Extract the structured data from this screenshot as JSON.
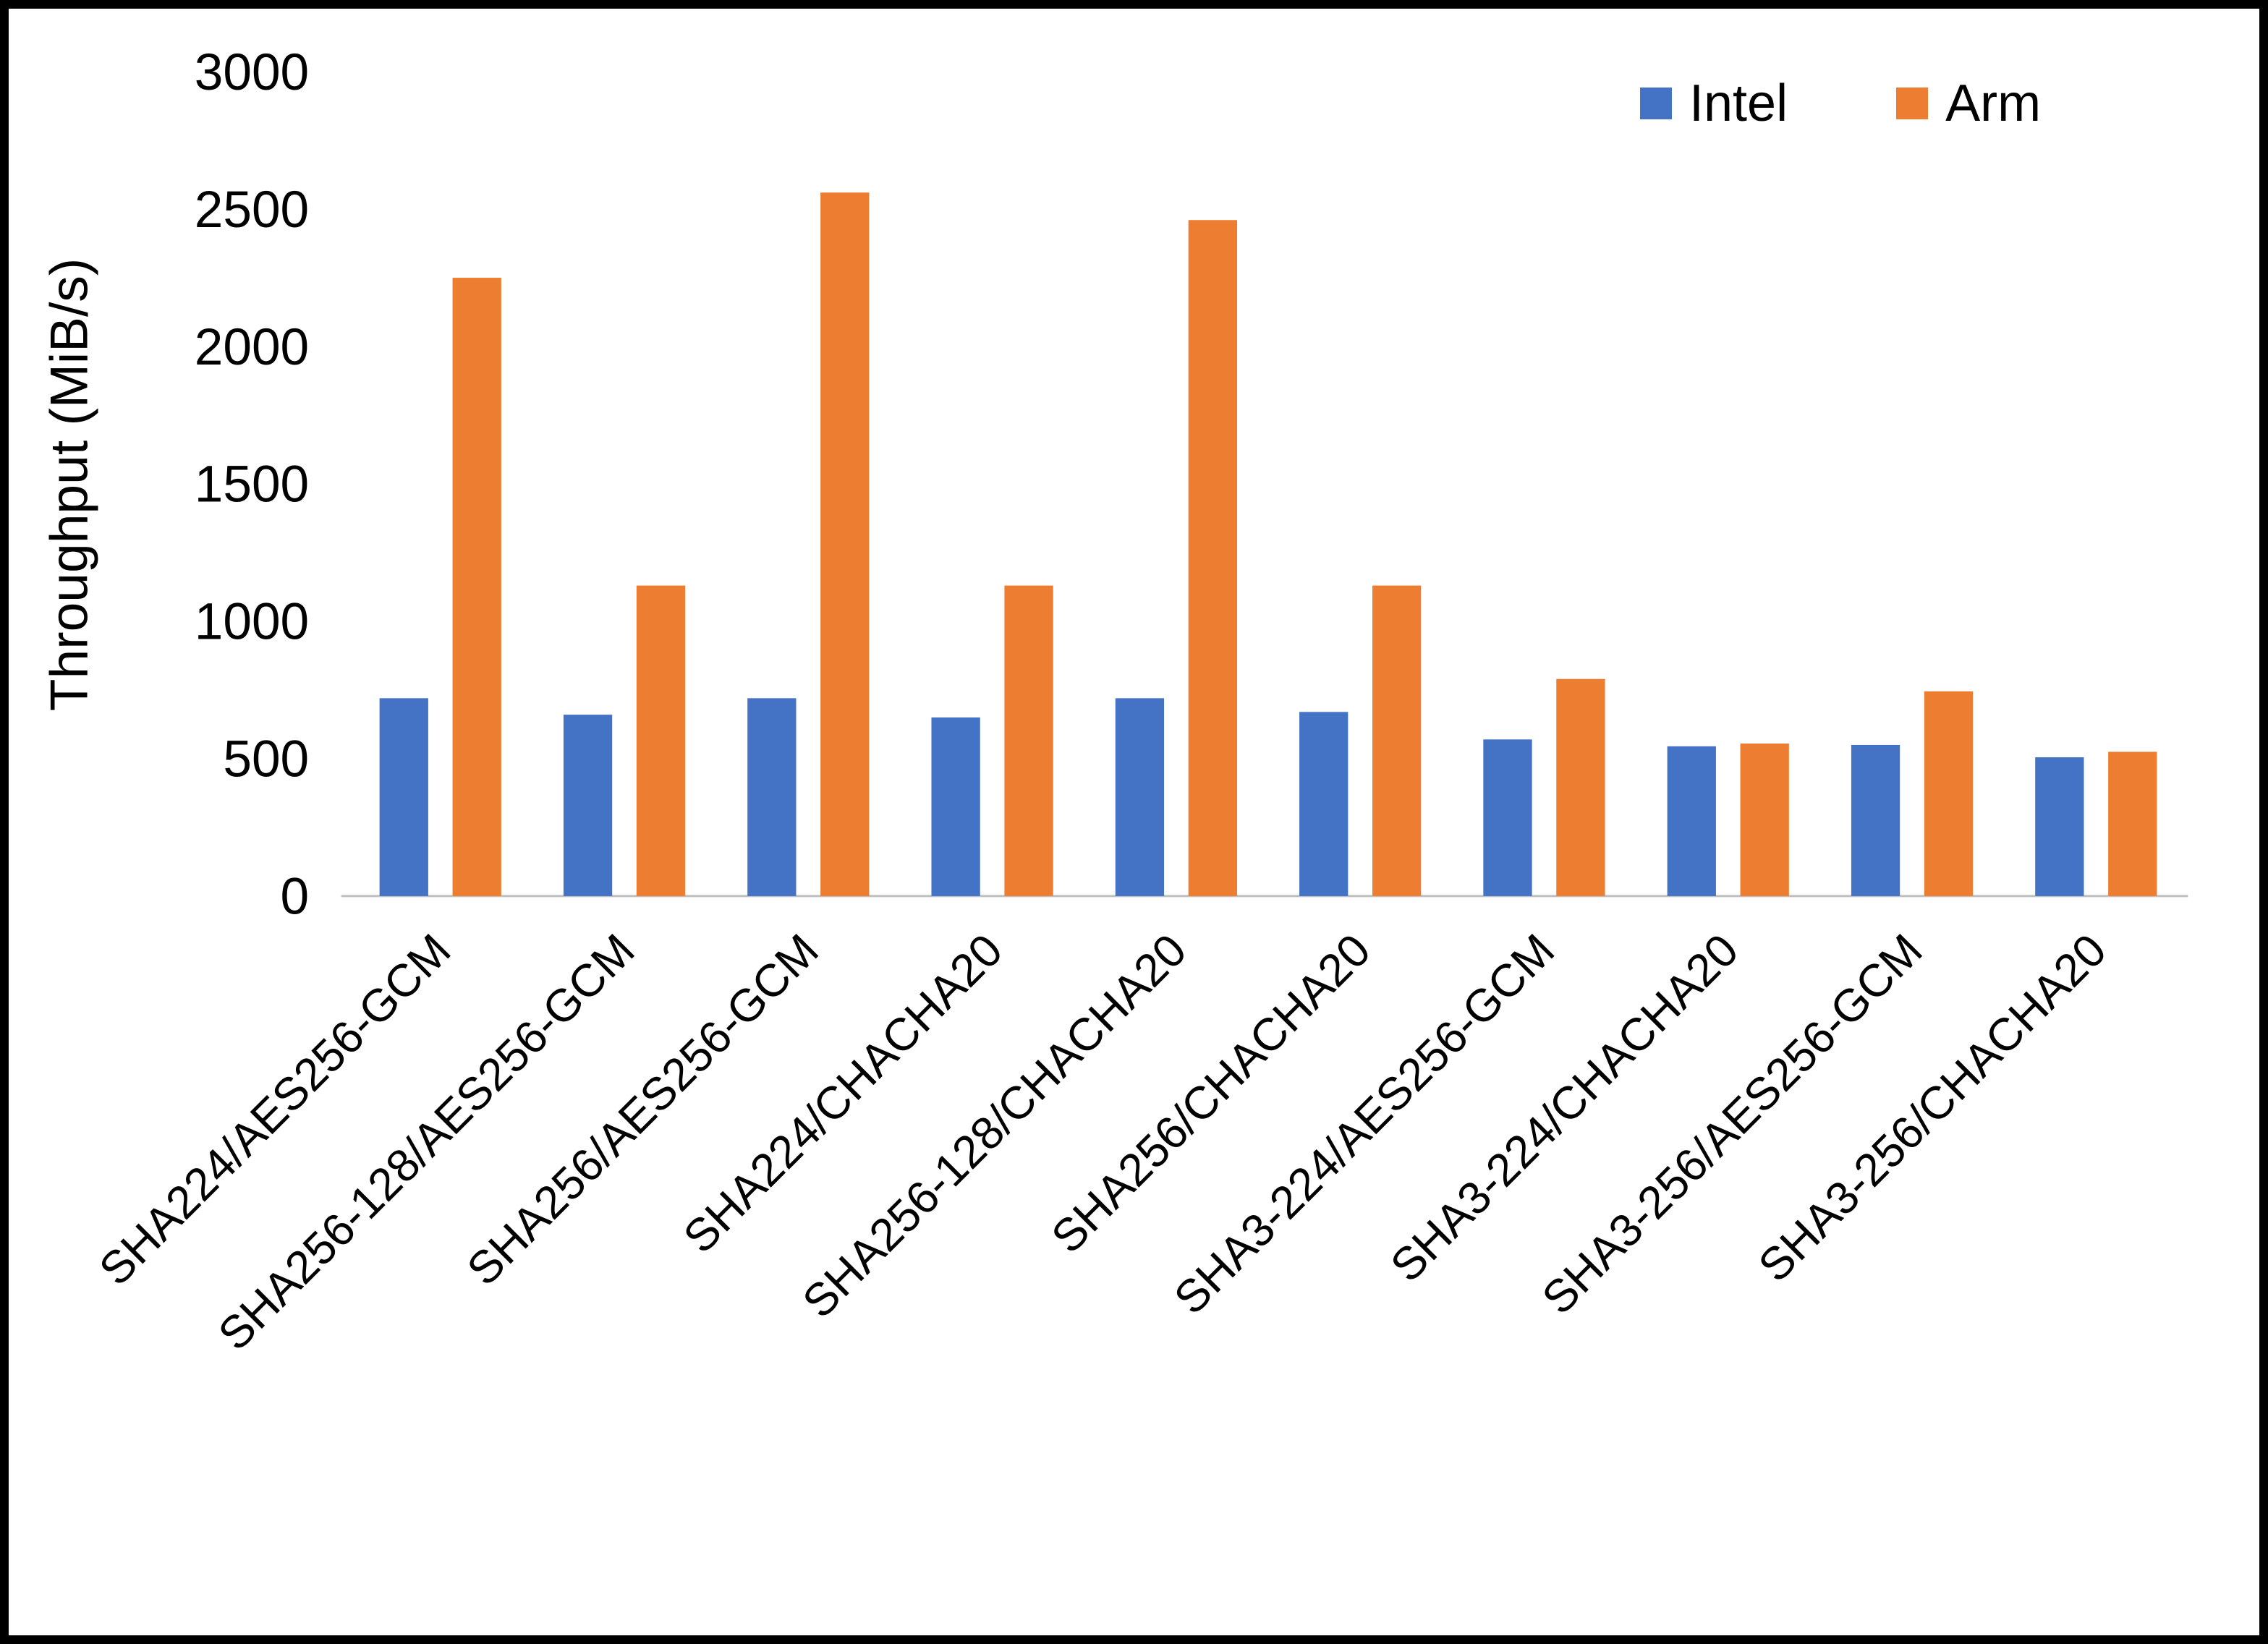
{
  "chart_data": {
    "type": "bar",
    "title": "",
    "xlabel": "",
    "ylabel": "Throughput (MiB/s)",
    "ylim": [
      0,
      3000
    ],
    "ytick_interval": 500,
    "grid": false,
    "legend_position": "top-right",
    "categories": [
      "SHA224/AES256-GCM",
      "SHA256-128/AES256-GCM",
      "SHA256/AES256-GCM",
      "SHA224/CHACHA20",
      "SHA256-128/CHACHA20",
      "SHA256/CHACHA20",
      "SHA3-224/AES256-GCM",
      "SHA3-224/CHACHA20",
      "SHA3-256/AES256-GCM",
      "SHA3-256/CHACHA20"
    ],
    "series": [
      {
        "name": "Intel",
        "color": "#4472C4",
        "values": [
          720,
          660,
          720,
          650,
          720,
          670,
          570,
          545,
          550,
          505
        ]
      },
      {
        "name": "Arm",
        "color": "#ED7D31",
        "values": [
          2250,
          1130,
          2560,
          1130,
          2460,
          1130,
          790,
          555,
          745,
          525
        ]
      }
    ],
    "yticks": [
      0,
      500,
      1000,
      1500,
      2000,
      2500,
      3000
    ]
  },
  "colors": {
    "axis_line": "#BFBFBF",
    "text": "#000000",
    "background": "#FFFFFF",
    "border": "#000000"
  }
}
